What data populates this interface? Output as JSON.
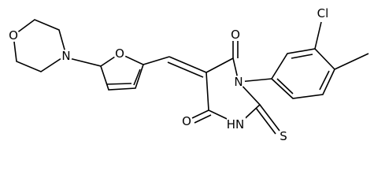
{
  "atoms": {
    "morpholine_o": "O",
    "morpholine_n": "N",
    "furan_o": "O",
    "carbonyl_o_top": "O",
    "ring_n": "N",
    "chlorine": "Cl",
    "carbonyl_o_bottom": "O",
    "nh": "HN",
    "sulfur": "S"
  }
}
